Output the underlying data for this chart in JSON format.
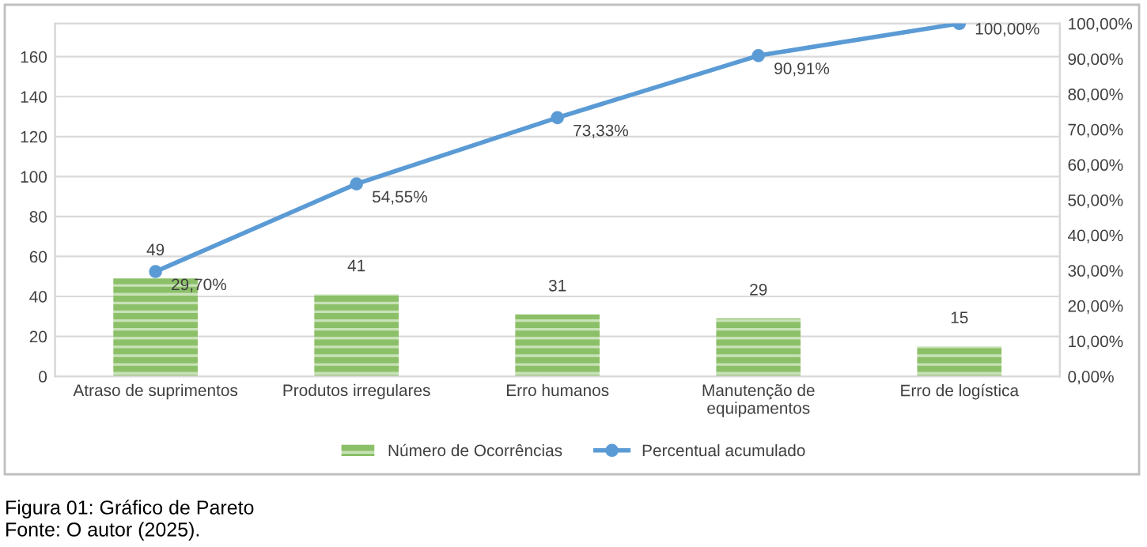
{
  "chart_data": {
    "type": "bar",
    "categories": [
      "Atraso de suprimentos",
      "Produtos irregulares",
      "Erro humanos",
      "Manutenção de\nequipamentos",
      "Erro de logística"
    ],
    "series": [
      {
        "name": "Número de Ocorrências",
        "color": "#8cc068",
        "values": [
          49,
          41,
          31,
          29,
          15
        ],
        "value_labels": [
          "49",
          "41",
          "31",
          "29",
          "15"
        ]
      },
      {
        "name": "Percentual acumulado",
        "type": "line",
        "axis": "y2",
        "color": "#5b9bd5",
        "values": [
          29.7,
          54.55,
          73.33,
          90.91,
          100.0
        ],
        "value_labels": [
          "29,70%",
          "54,55%",
          "73,33%",
          "90,91%",
          "100,00%"
        ]
      }
    ],
    "ylim": [
      0,
      176.6
    ],
    "yticks": [
      0,
      20,
      40,
      60,
      80,
      100,
      120,
      140,
      160
    ],
    "y2lim": [
      0,
      100
    ],
    "y2ticks": [
      {
        "value": 0,
        "label": "0,00%"
      },
      {
        "value": 10,
        "label": "10,00%"
      },
      {
        "value": 20,
        "label": "20,00%"
      },
      {
        "value": 30,
        "label": "30,00%"
      },
      {
        "value": 40,
        "label": "40,00%"
      },
      {
        "value": 50,
        "label": "50,00%"
      },
      {
        "value": 60,
        "label": "60,00%"
      },
      {
        "value": 70,
        "label": "70,00%"
      },
      {
        "value": 80,
        "label": "80,00%"
      },
      {
        "value": 90,
        "label": "90,00%"
      },
      {
        "value": 100,
        "label": "100,00%"
      }
    ],
    "marker": "circle",
    "line_style": "solid",
    "grid": "y",
    "legend": "bottom",
    "annotations": [
      "Figura 01: Gráfico de Pareto",
      "Fonte: O autor (2025)."
    ]
  }
}
